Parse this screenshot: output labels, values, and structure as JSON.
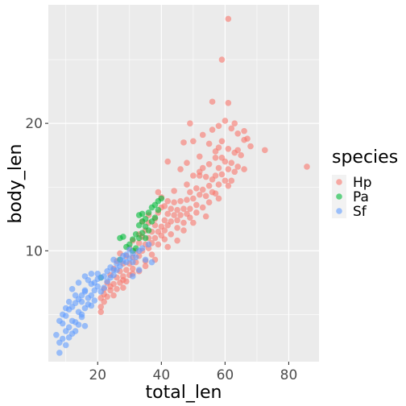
{
  "chart_data": {
    "type": "scatter",
    "title": "",
    "xlabel": "total_len",
    "ylabel": "body_len",
    "xlim": [
      4.5,
      89.5
    ],
    "ylim": [
      1.3,
      29.3
    ],
    "x_ticks": [
      20,
      40,
      60,
      80
    ],
    "y_ticks": [
      10,
      20
    ],
    "x_tick_labels": [
      "20",
      "40",
      "60",
      "80"
    ],
    "y_tick_labels": [
      "10",
      "20"
    ],
    "grid": true,
    "legend": {
      "title": "species",
      "position": "right"
    },
    "series": [
      {
        "name": "Hp",
        "color": "#F8766D",
        "points": [
          [
            61,
            28.2
          ],
          [
            59,
            25
          ],
          [
            56,
            21.7
          ],
          [
            61,
            21.6
          ],
          [
            49,
            20
          ],
          [
            85.7,
            16.6
          ],
          [
            72.5,
            17.9
          ],
          [
            68,
            18.2
          ],
          [
            67,
            18.8
          ],
          [
            66,
            18.7
          ],
          [
            66,
            19.4
          ],
          [
            64,
            19.2
          ],
          [
            62,
            19.6
          ],
          [
            63,
            20
          ],
          [
            60,
            20.2
          ],
          [
            58,
            19.8
          ],
          [
            56,
            19.5
          ],
          [
            53,
            19.1
          ],
          [
            50,
            18.6
          ],
          [
            47,
            18.5
          ],
          [
            55,
            18.4
          ],
          [
            58,
            18.1
          ],
          [
            61,
            18
          ],
          [
            63,
            17.7
          ],
          [
            65,
            17.5
          ],
          [
            52,
            17.4
          ],
          [
            57,
            17.3
          ],
          [
            59,
            17.3
          ],
          [
            60,
            17
          ],
          [
            62,
            16.9
          ],
          [
            64,
            16.6
          ],
          [
            55,
            16.8
          ],
          [
            53,
            16.5
          ],
          [
            58,
            16.5
          ],
          [
            61,
            16.4
          ],
          [
            63,
            16.2
          ],
          [
            59,
            16
          ],
          [
            57,
            15.9
          ],
          [
            54,
            15.8
          ],
          [
            52,
            15.9
          ],
          [
            50,
            15.9
          ],
          [
            46,
            16.4
          ],
          [
            42,
            17
          ],
          [
            56,
            15.6
          ],
          [
            60,
            15.5
          ],
          [
            62,
            15.5
          ],
          [
            58,
            15.2
          ],
          [
            55,
            15.1
          ],
          [
            53,
            14.8
          ],
          [
            51,
            14.9
          ],
          [
            49,
            14.6
          ],
          [
            57,
            14.5
          ],
          [
            54,
            14.3
          ],
          [
            52,
            14.4
          ],
          [
            50,
            14.1
          ],
          [
            48,
            14
          ],
          [
            46,
            13.9
          ],
          [
            44,
            13.8
          ],
          [
            42,
            13.9
          ],
          [
            40,
            14.2
          ],
          [
            51,
            13.6
          ],
          [
            49,
            13.3
          ],
          [
            47,
            13.3
          ],
          [
            45,
            13.2
          ],
          [
            43,
            13.3
          ],
          [
            41,
            13.5
          ],
          [
            48,
            12.9
          ],
          [
            46,
            12.8
          ],
          [
            44,
            12.8
          ],
          [
            42,
            12.9
          ],
          [
            39,
            13
          ],
          [
            45,
            12.4
          ],
          [
            43,
            12.3
          ],
          [
            41,
            12.4
          ],
          [
            38,
            12.5
          ],
          [
            42,
            12
          ],
          [
            40,
            11.9
          ],
          [
            38,
            12
          ],
          [
            36,
            12.2
          ],
          [
            41,
            11.6
          ],
          [
            39,
            11.5
          ],
          [
            37,
            11.5
          ],
          [
            35,
            11.6
          ],
          [
            40,
            11.2
          ],
          [
            38,
            11
          ],
          [
            36,
            11
          ],
          [
            34,
            11.1
          ],
          [
            33,
            11.3
          ],
          [
            37,
            10.6
          ],
          [
            35,
            10.5
          ],
          [
            33,
            10.6
          ],
          [
            31,
            10.8
          ],
          [
            36,
            10.2
          ],
          [
            34,
            10
          ],
          [
            32,
            10
          ],
          [
            30,
            10.2
          ],
          [
            33,
            9.6
          ],
          [
            31,
            9.5
          ],
          [
            29,
            9.6
          ],
          [
            27,
            9.8
          ],
          [
            32,
            9.1
          ],
          [
            30,
            9
          ],
          [
            28,
            9
          ],
          [
            26,
            9.2
          ],
          [
            31,
            8.6
          ],
          [
            29,
            8.5
          ],
          [
            27,
            8.4
          ],
          [
            25,
            8.6
          ],
          [
            30,
            8.1
          ],
          [
            28,
            8
          ],
          [
            26,
            7.9
          ],
          [
            24,
            8.1
          ],
          [
            29,
            7.6
          ],
          [
            27,
            7.5
          ],
          [
            25,
            7.4
          ],
          [
            23,
            7.5
          ],
          [
            28,
            7.1
          ],
          [
            26,
            7
          ],
          [
            24,
            6.9
          ],
          [
            22,
            7
          ],
          [
            25,
            6.5
          ],
          [
            23,
            6.4
          ],
          [
            21,
            6.3
          ],
          [
            22,
            6
          ],
          [
            21,
            5.6
          ],
          [
            21,
            5.2
          ],
          [
            33,
            8.4
          ],
          [
            35,
            9.2
          ],
          [
            37,
            9.7
          ],
          [
            39,
            10.5
          ],
          [
            41,
            10.9
          ],
          [
            43,
            11.3
          ],
          [
            45,
            11.8
          ],
          [
            47,
            12.2
          ],
          [
            49,
            12.6
          ],
          [
            51,
            13
          ],
          [
            53,
            13.4
          ],
          [
            55,
            13.8
          ],
          [
            56,
            14.6
          ],
          [
            44,
            14.7
          ],
          [
            36,
            12.8
          ],
          [
            34,
            12.3
          ],
          [
            40,
            13.4
          ],
          [
            48,
            15.2
          ],
          [
            52,
            16.2
          ],
          [
            57,
            17.8
          ],
          [
            59,
            18.6
          ],
          [
            64,
            17.9
          ],
          [
            66,
            16.4
          ],
          [
            47,
            11.6
          ],
          [
            54,
            12.7
          ],
          [
            50,
            12.2
          ],
          [
            58,
            14.1
          ],
          [
            61,
            15.1
          ],
          [
            45,
            10.8
          ],
          [
            42,
            10.3
          ],
          [
            38,
            9.3
          ],
          [
            35,
            8.8
          ],
          [
            31,
            8.2
          ],
          [
            28,
            7.7
          ],
          [
            24,
            7.2
          ],
          [
            22,
            6.6
          ],
          [
            48,
            16.9
          ],
          [
            39,
            14.6
          ]
        ]
      },
      {
        "name": "Pa",
        "color": "#00BA38",
        "points": [
          [
            40,
            14.1
          ],
          [
            39,
            13.9
          ],
          [
            38,
            13.6
          ],
          [
            37,
            13.4
          ],
          [
            39,
            13.2
          ],
          [
            36,
            13
          ],
          [
            34,
            12.9
          ],
          [
            33,
            12.8
          ],
          [
            35,
            12.5
          ],
          [
            37,
            12.3
          ],
          [
            38,
            12.6
          ],
          [
            34,
            12.3
          ],
          [
            33,
            12
          ],
          [
            35,
            11.9
          ],
          [
            36,
            11.6
          ],
          [
            34,
            11.4
          ],
          [
            32,
            11.3
          ],
          [
            33,
            11
          ],
          [
            31,
            10.9
          ],
          [
            28,
            11.1
          ],
          [
            27,
            11
          ],
          [
            35,
            11
          ],
          [
            30,
            10.5
          ],
          [
            29,
            10.3
          ],
          [
            31,
            10
          ],
          [
            32,
            10.2
          ],
          [
            27,
            9.3
          ],
          [
            21,
            7.9
          ]
        ]
      },
      {
        "name": "Sf",
        "color": "#619CFF",
        "points": [
          [
            8,
            2
          ],
          [
            8,
            2.8
          ],
          [
            7,
            3.4
          ],
          [
            9,
            3.1
          ],
          [
            10,
            3.7
          ],
          [
            11,
            4
          ],
          [
            9,
            4.3
          ],
          [
            10,
            4.9
          ],
          [
            12,
            4.5
          ],
          [
            13,
            4.4
          ],
          [
            11,
            5.4
          ],
          [
            12,
            5.6
          ],
          [
            13,
            5.9
          ],
          [
            14,
            5.2
          ],
          [
            15,
            5
          ],
          [
            16,
            5.5
          ],
          [
            14,
            6.2
          ],
          [
            15,
            6.5
          ],
          [
            16,
            6.8
          ],
          [
            17,
            6.3
          ],
          [
            18,
            6.5
          ],
          [
            19,
            6.9
          ],
          [
            18,
            7.4
          ],
          [
            17,
            7.7
          ],
          [
            19,
            7.5
          ],
          [
            20,
            7.2
          ],
          [
            21,
            7.9
          ],
          [
            20,
            8.2
          ],
          [
            22,
            8
          ],
          [
            23,
            8.4
          ],
          [
            24,
            8.7
          ],
          [
            25,
            8.5
          ],
          [
            26,
            9
          ],
          [
            27,
            9.3
          ],
          [
            28,
            9.6
          ],
          [
            29,
            9.1
          ],
          [
            30,
            9.4
          ],
          [
            31,
            9.8
          ],
          [
            32,
            9.5
          ],
          [
            33,
            10
          ],
          [
            34,
            10.2
          ],
          [
            35,
            9.3
          ],
          [
            36,
            10.5
          ],
          [
            18,
            8.2
          ],
          [
            16,
            8
          ],
          [
            14,
            7.5
          ],
          [
            13,
            6.5
          ],
          [
            12,
            7
          ],
          [
            11,
            6
          ],
          [
            10,
            5.5
          ],
          [
            9,
            5
          ],
          [
            8,
            4.5
          ],
          [
            12,
            3.5
          ],
          [
            14,
            4.2
          ],
          [
            15,
            4.8
          ],
          [
            13,
            3.7
          ],
          [
            11,
            3.2
          ],
          [
            10,
            2.6
          ],
          [
            17,
            5.8
          ],
          [
            19,
            6.1
          ],
          [
            21,
            6.8
          ],
          [
            22,
            7.1
          ],
          [
            23,
            7.6
          ],
          [
            24,
            7.9
          ],
          [
            25,
            8.1
          ],
          [
            26,
            8.5
          ],
          [
            27,
            8.8
          ],
          [
            28,
            9.2
          ],
          [
            29,
            9.7
          ],
          [
            30,
            10.1
          ],
          [
            31,
            9.1
          ],
          [
            15,
            6
          ],
          [
            16,
            6.9
          ],
          [
            20,
            7.8
          ],
          [
            18,
            5.7
          ],
          [
            25,
            9.3
          ],
          [
            37,
            9.1
          ],
          [
            33,
            8.5
          ],
          [
            31,
            8
          ],
          [
            16,
            4.1
          ]
        ]
      }
    ]
  }
}
